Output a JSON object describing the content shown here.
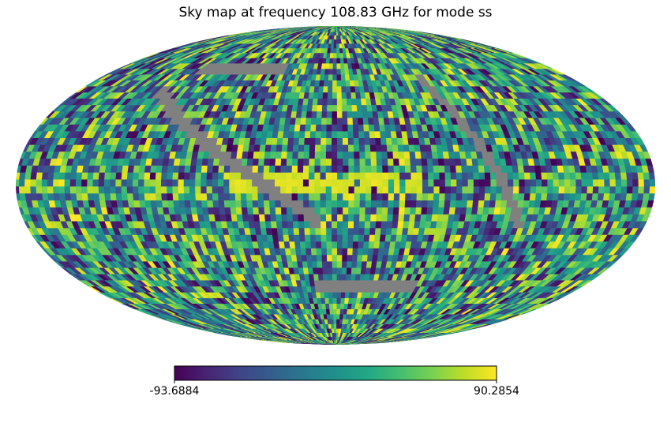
{
  "chart_data": {
    "type": "heatmap",
    "projection": "mollweide",
    "title": "Sky map at frequency 108.83 GHz for mode ss",
    "colormap": "viridis",
    "masked_color": "#808080",
    "colorbar": {
      "orientation": "horizontal",
      "min": -93.6884,
      "max": 90.2854,
      "min_label": "-93.6884",
      "max_label": "90.2854"
    },
    "grid": false,
    "features": {
      "bright_band": {
        "description": "band of high values near the equator",
        "longitude_range_deg": [
          -50,
          60
        ],
        "latitude_deg": [
          -2,
          5
        ],
        "value_level": 0.98
      },
      "masked_regions": "strips of unseen pixels"
    }
  }
}
